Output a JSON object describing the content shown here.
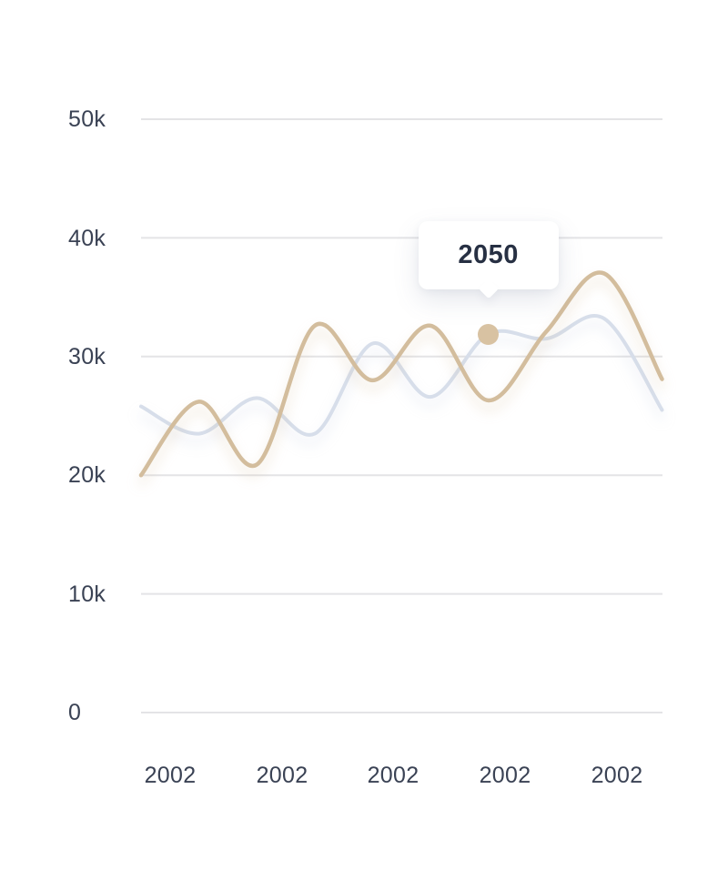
{
  "theme": {
    "background": "#ffffff",
    "primary_line_color": "#d3bd9d",
    "secondary_line_color": "#d7deea",
    "gridline_color": "#e4e4e6",
    "axis_label_color": "#3a4254",
    "tooltip_text_color": "#273043",
    "marker_color": "#d8c2a2"
  },
  "axes": {
    "y_labels": [
      "50k",
      "40k",
      "30k",
      "20k",
      "10k",
      "0"
    ],
    "x_labels": [
      "2002",
      "2002",
      "2002",
      "2002",
      "2002"
    ]
  },
  "tooltip": {
    "label": "2050"
  },
  "chart_data": {
    "type": "line",
    "title": "",
    "xlabel": "",
    "ylabel": "",
    "x_tick_labels": [
      "2002",
      "2002",
      "2002",
      "2002",
      "2002"
    ],
    "y_tick_labels": [
      "0",
      "10k",
      "20k",
      "30k",
      "40k",
      "50k"
    ],
    "ylim": [
      0,
      50000
    ],
    "grid": "horizontal",
    "legend_position": "none",
    "curve_style": "smooth-spline",
    "series": [
      {
        "name": "secondary",
        "color": "#d7deea",
        "values_thousands": [
          25.8,
          23.5,
          26.5,
          23.5,
          31.1,
          26.6,
          31.9,
          31.5,
          33.2,
          25.5
        ]
      },
      {
        "name": "primary",
        "color": "#d3bd9d",
        "values_thousands": [
          20.0,
          26.2,
          20.9,
          32.6,
          28.0,
          32.6,
          26.3,
          32.1,
          37.0,
          28.1
        ]
      }
    ],
    "highlighted_point": {
      "series": "secondary",
      "index": 6,
      "value_thousands": 31.9,
      "tooltip_label": "2050"
    }
  }
}
